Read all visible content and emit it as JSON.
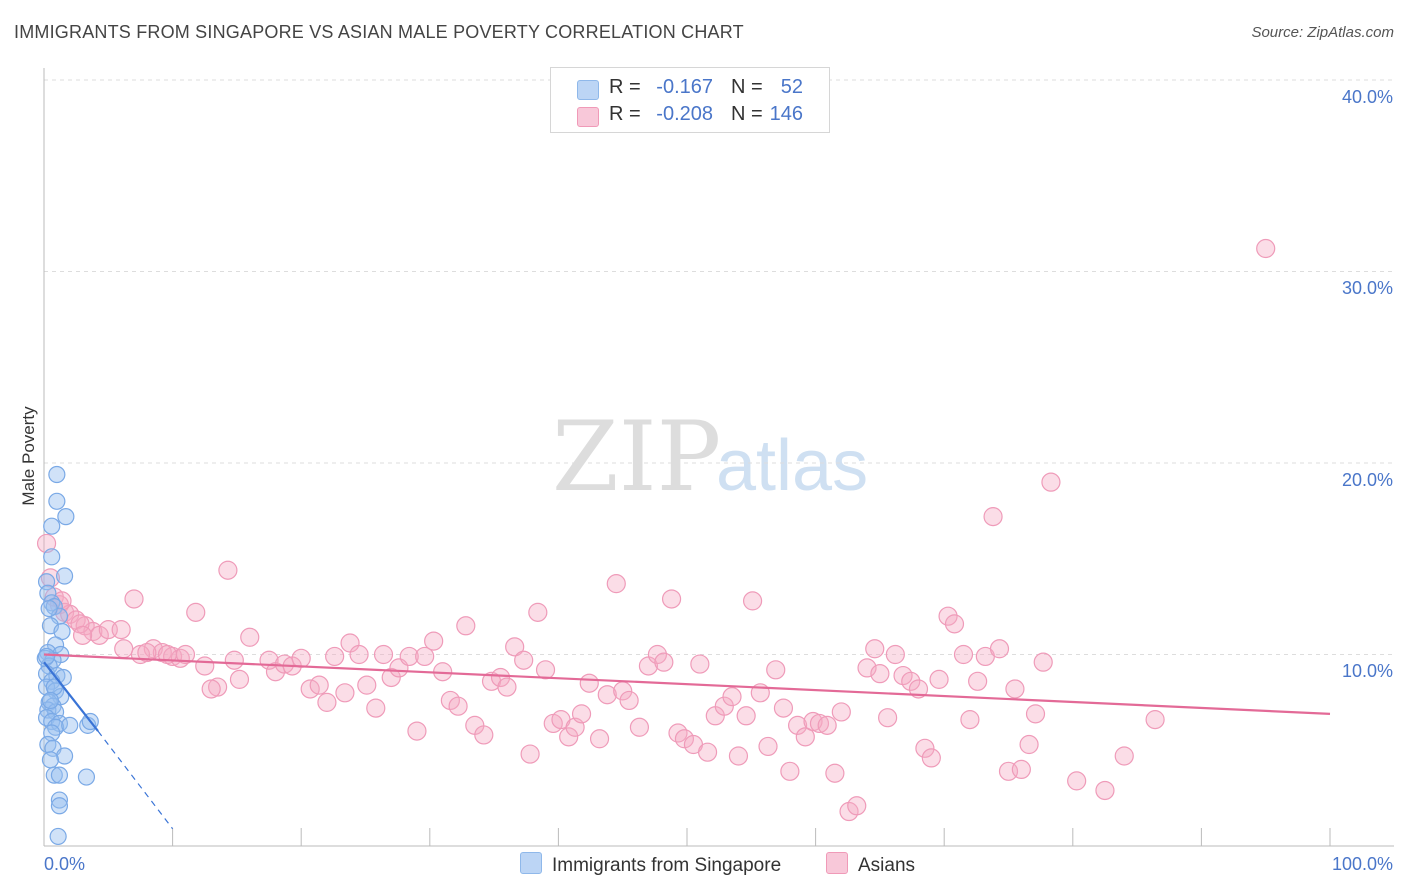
{
  "header": {
    "title": "IMMIGRANTS FROM SINGAPORE VS ASIAN MALE POVERTY CORRELATION CHART",
    "source": "Source: ZipAtlas.com"
  },
  "watermark": {
    "zip": "ZIP",
    "atlas": "atlas"
  },
  "legend": {
    "rows": [
      {
        "r_label": "R =",
        "r_value": "-0.167",
        "n_label": "N =",
        "n_value": "52",
        "color": "#8fb8ea",
        "fill": "#bcd5f5"
      },
      {
        "r_label": "R =",
        "r_value": "-0.208",
        "n_label": "N =",
        "n_value": "146",
        "color": "#f09ab8",
        "fill": "#f8c8d9"
      }
    ]
  },
  "bottom_legend": {
    "items": [
      {
        "label": "Immigrants from Singapore",
        "fill": "#bcd5f5",
        "border": "#8fb8ea"
      },
      {
        "label": "Asians",
        "fill": "#f8c8d9",
        "border": "#f09ab8"
      }
    ]
  },
  "axis_labels": {
    "y_title": "Male Poverty",
    "x_min": "0.0%",
    "x_max": "100.0%",
    "y_ticks": [
      "10.0%",
      "20.0%",
      "30.0%",
      "40.0%"
    ]
  },
  "chart_data": {
    "type": "scatter",
    "title": "IMMIGRANTS FROM SINGAPORE VS ASIAN MALE POVERTY CORRELATION CHART",
    "xlabel": "",
    "ylabel": "Male Poverty",
    "xlim": [
      0,
      100
    ],
    "ylim": [
      0,
      40
    ],
    "y_ticks": [
      10,
      20,
      30,
      40
    ],
    "grid": true,
    "colors": {
      "blue_stroke": "#7aa9e6",
      "blue_fill": "rgba(150,190,240,0.45)",
      "blue_line": "#3a74d6",
      "pink_stroke": "#ef9bb9",
      "pink_fill": "rgba(245,170,195,0.40)",
      "pink_line": "#e36a97",
      "grid": "#dddddd",
      "axis": "#bbbbbb"
    },
    "series": [
      {
        "name": "Immigrants from Singapore",
        "R": -0.167,
        "N": 52,
        "trend": {
          "x0": 0,
          "y0": 9.6,
          "x1": 4.2,
          "y1": 6.0,
          "dash_to_x": 10,
          "dash_to_y": 0.9
        },
        "points": [
          [
            1.0,
            19.4
          ],
          [
            1.0,
            18.0
          ],
          [
            1.7,
            17.2
          ],
          [
            0.6,
            16.7
          ],
          [
            0.6,
            15.1
          ],
          [
            0.2,
            13.8
          ],
          [
            1.6,
            14.1
          ],
          [
            0.3,
            13.2
          ],
          [
            0.6,
            12.7
          ],
          [
            0.8,
            12.5
          ],
          [
            1.2,
            12.0
          ],
          [
            0.5,
            11.5
          ],
          [
            1.4,
            11.2
          ],
          [
            0.9,
            10.5
          ],
          [
            0.3,
            10.1
          ],
          [
            0.1,
            9.8
          ],
          [
            1.3,
            10.0
          ],
          [
            0.7,
            9.7
          ],
          [
            0.4,
            9.4
          ],
          [
            0.2,
            9.0
          ],
          [
            1.0,
            8.9
          ],
          [
            1.5,
            8.8
          ],
          [
            0.6,
            8.6
          ],
          [
            0.2,
            8.3
          ],
          [
            0.9,
            8.1
          ],
          [
            1.3,
            7.8
          ],
          [
            0.4,
            7.5
          ],
          [
            0.7,
            7.3
          ],
          [
            0.3,
            7.1
          ],
          [
            0.9,
            7.0
          ],
          [
            0.2,
            6.7
          ],
          [
            0.6,
            6.5
          ],
          [
            1.2,
            6.4
          ],
          [
            0.9,
            6.2
          ],
          [
            2.0,
            6.3
          ],
          [
            3.4,
            6.3
          ],
          [
            3.6,
            6.5
          ],
          [
            0.6,
            5.9
          ],
          [
            0.3,
            5.3
          ],
          [
            0.7,
            5.1
          ],
          [
            1.6,
            4.7
          ],
          [
            0.5,
            4.5
          ],
          [
            0.8,
            3.7
          ],
          [
            1.2,
            3.7
          ],
          [
            3.3,
            3.6
          ],
          [
            1.2,
            2.4
          ],
          [
            1.2,
            2.1
          ],
          [
            1.1,
            0.5
          ],
          [
            0.2,
            9.9
          ],
          [
            0.4,
            12.4
          ],
          [
            0.8,
            8.3
          ],
          [
            0.5,
            7.6
          ]
        ]
      },
      {
        "name": "Asians",
        "R": -0.208,
        "N": 146,
        "trend": {
          "x0": 0,
          "y0": 10.0,
          "x1": 100,
          "y1": 6.9
        },
        "points": [
          [
            0.2,
            15.8
          ],
          [
            0.5,
            14.0
          ],
          [
            0.8,
            13.0
          ],
          [
            1.2,
            12.6
          ],
          [
            1.6,
            12.2
          ],
          [
            2.0,
            12.1
          ],
          [
            2.5,
            11.8
          ],
          [
            3.2,
            11.5
          ],
          [
            3.8,
            11.2
          ],
          [
            4.3,
            11.0
          ],
          [
            5.0,
            11.3
          ],
          [
            1.4,
            12.8
          ],
          [
            2.8,
            11.6
          ],
          [
            7.0,
            12.9
          ],
          [
            14.3,
            14.4
          ],
          [
            11.8,
            12.2
          ],
          [
            8.5,
            10.3
          ],
          [
            9.2,
            10.1
          ],
          [
            10.0,
            9.9
          ],
          [
            10.6,
            9.8
          ],
          [
            11.0,
            10.0
          ],
          [
            6.2,
            10.3
          ],
          [
            7.5,
            10.0
          ],
          [
            8.0,
            10.1
          ],
          [
            12.5,
            9.4
          ],
          [
            13.5,
            8.3
          ],
          [
            14.8,
            9.7
          ],
          [
            15.2,
            8.7
          ],
          [
            16.0,
            10.9
          ],
          [
            17.5,
            9.7
          ],
          [
            18.0,
            9.1
          ],
          [
            18.7,
            9.5
          ],
          [
            19.3,
            9.4
          ],
          [
            20.0,
            9.8
          ],
          [
            20.7,
            8.2
          ],
          [
            21.4,
            8.4
          ],
          [
            22.0,
            7.5
          ],
          [
            22.6,
            9.9
          ],
          [
            23.4,
            8.0
          ],
          [
            23.8,
            10.6
          ],
          [
            24.5,
            10.0
          ],
          [
            25.1,
            8.4
          ],
          [
            25.8,
            7.2
          ],
          [
            26.4,
            10.0
          ],
          [
            27.0,
            8.8
          ],
          [
            27.6,
            9.3
          ],
          [
            28.4,
            9.9
          ],
          [
            29.0,
            6.0
          ],
          [
            29.6,
            9.9
          ],
          [
            30.3,
            10.7
          ],
          [
            31.0,
            9.1
          ],
          [
            31.6,
            7.6
          ],
          [
            32.2,
            7.3
          ],
          [
            32.8,
            11.5
          ],
          [
            33.5,
            6.3
          ],
          [
            34.2,
            5.8
          ],
          [
            34.8,
            8.6
          ],
          [
            35.5,
            8.8
          ],
          [
            36.0,
            8.3
          ],
          [
            36.6,
            10.4
          ],
          [
            37.3,
            9.7
          ],
          [
            37.8,
            4.8
          ],
          [
            38.4,
            12.2
          ],
          [
            39.0,
            9.2
          ],
          [
            39.6,
            6.4
          ],
          [
            40.2,
            6.6
          ],
          [
            40.8,
            5.7
          ],
          [
            41.3,
            6.2
          ],
          [
            41.8,
            6.9
          ],
          [
            42.4,
            8.5
          ],
          [
            43.2,
            5.6
          ],
          [
            43.8,
            7.9
          ],
          [
            44.5,
            13.7
          ],
          [
            45.0,
            8.1
          ],
          [
            45.5,
            7.6
          ],
          [
            46.3,
            6.2
          ],
          [
            47.0,
            9.4
          ],
          [
            47.7,
            10.0
          ],
          [
            48.2,
            9.6
          ],
          [
            48.8,
            12.9
          ],
          [
            49.3,
            5.9
          ],
          [
            49.8,
            5.6
          ],
          [
            50.5,
            5.3
          ],
          [
            51.0,
            9.5
          ],
          [
            51.6,
            4.9
          ],
          [
            52.2,
            6.8
          ],
          [
            52.9,
            7.3
          ],
          [
            53.5,
            7.8
          ],
          [
            54.0,
            4.7
          ],
          [
            54.6,
            6.8
          ],
          [
            55.1,
            12.8
          ],
          [
            55.7,
            8.0
          ],
          [
            56.3,
            5.2
          ],
          [
            56.9,
            9.2
          ],
          [
            57.5,
            7.2
          ],
          [
            58.0,
            3.9
          ],
          [
            58.6,
            6.3
          ],
          [
            59.2,
            5.7
          ],
          [
            59.8,
            6.5
          ],
          [
            60.3,
            6.4
          ],
          [
            60.9,
            6.3
          ],
          [
            61.5,
            3.8
          ],
          [
            62.0,
            7.0
          ],
          [
            62.6,
            1.8
          ],
          [
            63.2,
            2.1
          ],
          [
            64.0,
            9.3
          ],
          [
            64.6,
            10.3
          ],
          [
            65.0,
            9.0
          ],
          [
            65.6,
            6.7
          ],
          [
            66.2,
            10.0
          ],
          [
            66.8,
            8.9
          ],
          [
            67.4,
            8.6
          ],
          [
            68.0,
            8.2
          ],
          [
            68.5,
            5.1
          ],
          [
            69.0,
            4.6
          ],
          [
            69.6,
            8.7
          ],
          [
            70.3,
            12.0
          ],
          [
            70.8,
            11.6
          ],
          [
            71.5,
            10.0
          ],
          [
            72.0,
            6.6
          ],
          [
            72.6,
            8.6
          ],
          [
            73.2,
            9.9
          ],
          [
            73.8,
            17.2
          ],
          [
            74.3,
            10.3
          ],
          [
            75.0,
            3.9
          ],
          [
            75.5,
            8.2
          ],
          [
            76.0,
            4.0
          ],
          [
            76.6,
            5.3
          ],
          [
            77.1,
            6.9
          ],
          [
            77.7,
            9.6
          ],
          [
            78.3,
            19.0
          ],
          [
            80.3,
            3.4
          ],
          [
            82.5,
            2.9
          ],
          [
            84.0,
            4.7
          ],
          [
            86.4,
            6.6
          ],
          [
            95.0,
            31.2
          ],
          [
            3.0,
            11.0
          ],
          [
            6.0,
            11.3
          ],
          [
            9.6,
            10.0
          ],
          [
            13.0,
            8.2
          ]
        ]
      }
    ]
  }
}
